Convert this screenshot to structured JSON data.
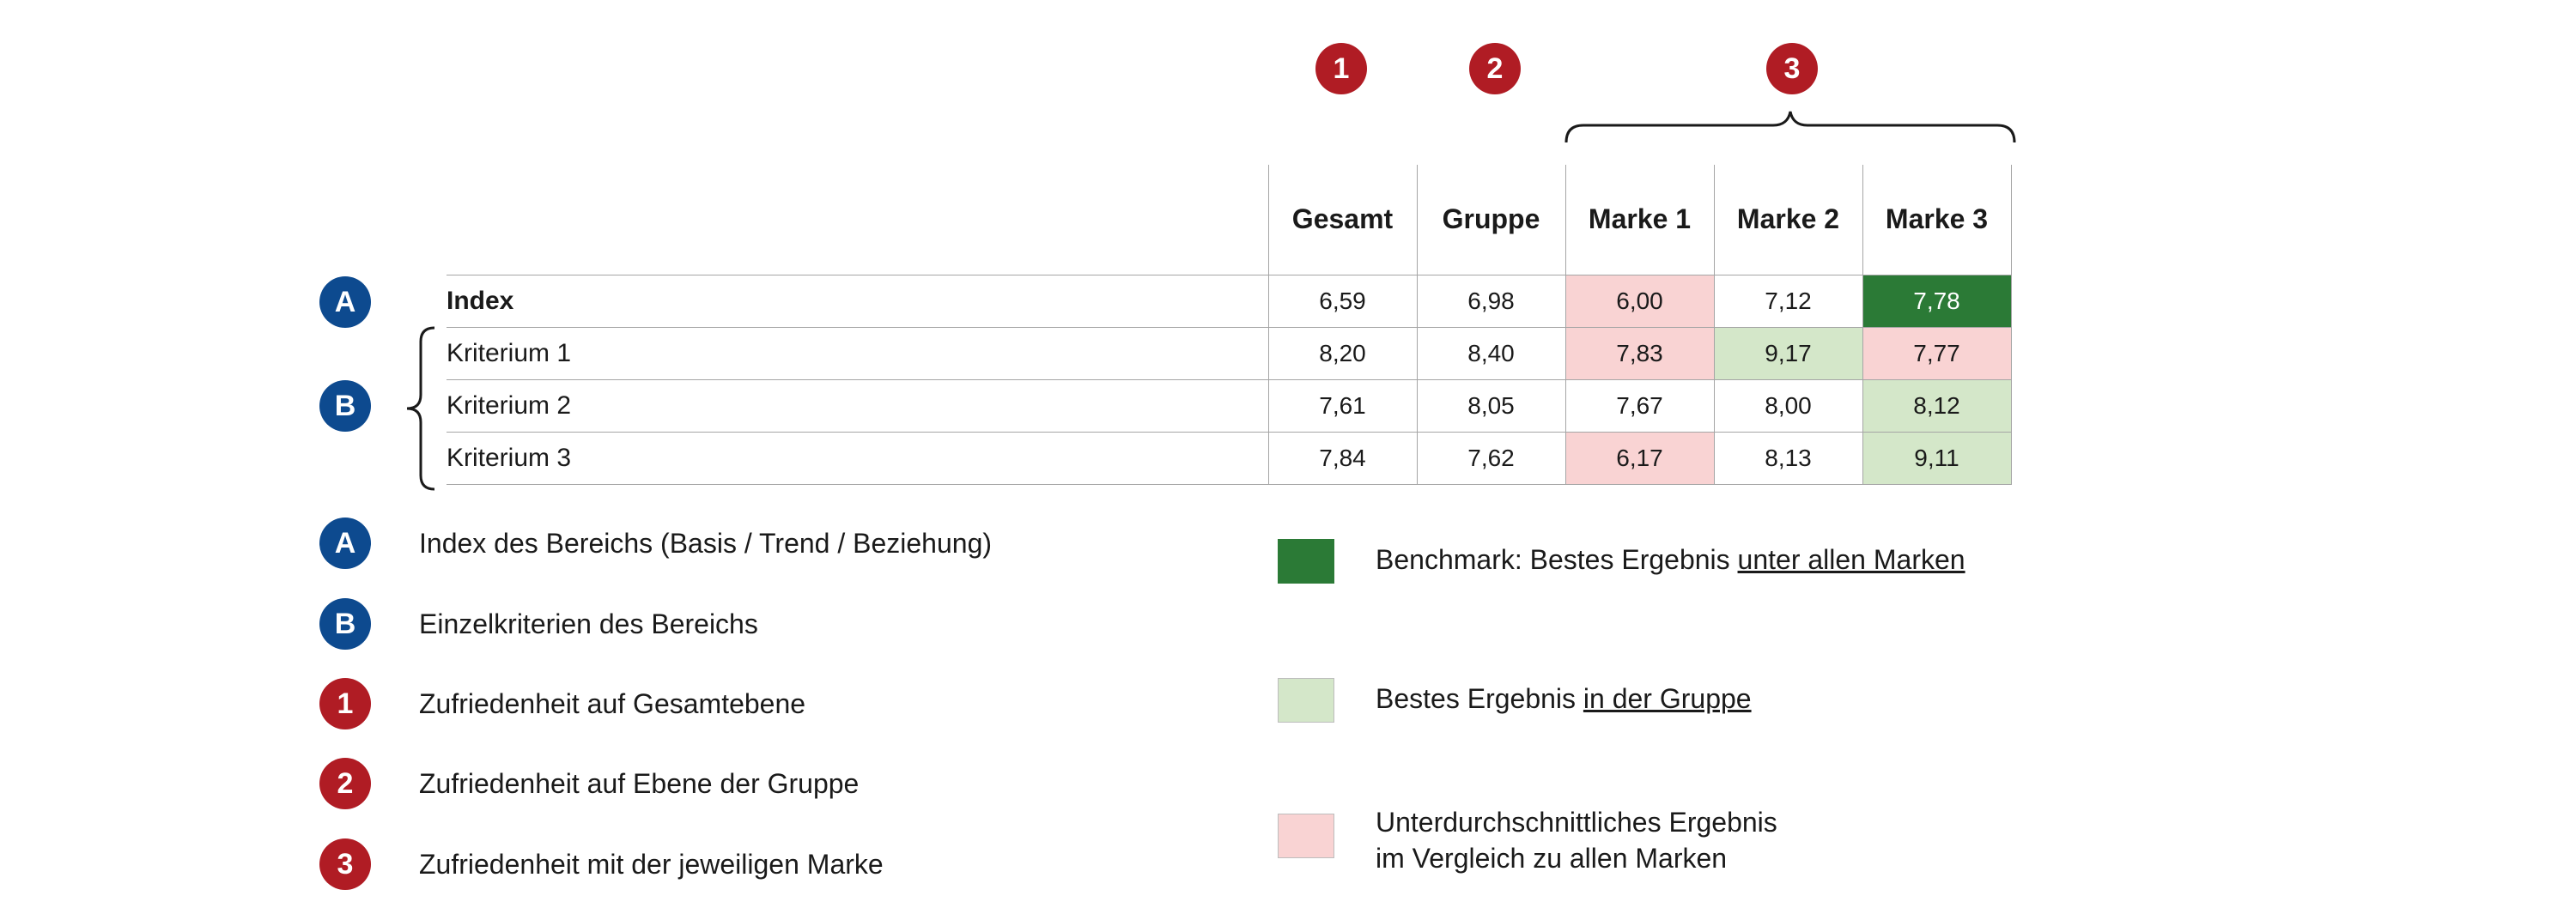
{
  "column_markers": [
    "1",
    "2",
    "3"
  ],
  "row_markers": [
    "A",
    "B"
  ],
  "table": {
    "headers": [
      "Gesamt",
      "Gruppe",
      "Marke 1",
      "Marke 2",
      "Marke 3"
    ],
    "rows": [
      {
        "label": "Index",
        "values": [
          "6,59",
          "6,98",
          "6,00",
          "7,12",
          "7,78"
        ]
      },
      {
        "label": "Kriterium 1",
        "values": [
          "8,20",
          "8,40",
          "7,83",
          "9,17",
          "7,77"
        ]
      },
      {
        "label": "Kriterium 2",
        "values": [
          "7,61",
          "8,05",
          "7,67",
          "8,00",
          "8,12"
        ]
      },
      {
        "label": "Kriterium 3",
        "values": [
          "7,84",
          "7,62",
          "6,17",
          "8,13",
          "9,11"
        ]
      }
    ]
  },
  "legend_left": [
    {
      "marker": "A",
      "text": "Index des Bereichs (Basis / Trend / Beziehung)"
    },
    {
      "marker": "B",
      "text": "Einzelkriterien des Bereichs"
    },
    {
      "marker": "1",
      "text": "Zufriedenheit auf Gesamtebene"
    },
    {
      "marker": "2",
      "text": "Zufriedenheit auf Ebene der Gruppe"
    },
    {
      "marker": "3",
      "text": "Zufriedenheit mit der jeweiligen Marke"
    }
  ],
  "legend_right": {
    "benchmark": {
      "prefix": "Benchmark: Bestes Ergebnis ",
      "underlined": "unter allen Marken"
    },
    "group_best": {
      "prefix": "Bestes Ergebnis ",
      "underlined": "in der Gruppe"
    },
    "below_avg": {
      "line1": "Unterdurchschnittliches Ergebnis",
      "line2": "im Vergleich zu allen Marken"
    }
  },
  "colors": {
    "marker_red": "#b01c24",
    "marker_blue": "#0d4a8f",
    "benchmark_green": "#2b7a36",
    "group_best_green": "#d4e7c9",
    "below_avg_pink": "#f9d3d3"
  }
}
